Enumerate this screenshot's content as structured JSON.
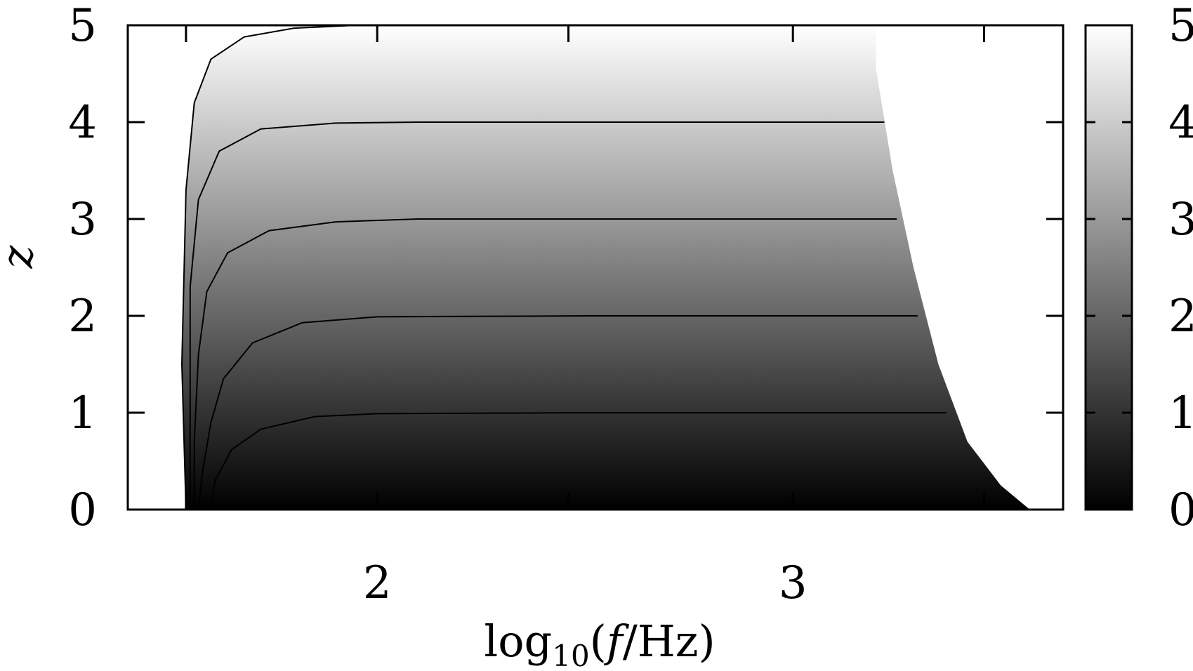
{
  "chart_data": {
    "type": "heatmap",
    "title": "",
    "xlabel_main": "log",
    "xlabel_sub": "10",
    "xlabel_tail_open": "(",
    "xlabel_var": "f",
    "xlabel_unit": "/Hz)",
    "ylabel": "z",
    "xlim": [
      1.4,
      3.65
    ],
    "ylim": [
      0,
      5
    ],
    "x_ticks": [
      {
        "value": 1.54,
        "label": ""
      },
      {
        "value": 2.0,
        "label": "2"
      },
      {
        "value": 2.46,
        "label": ""
      },
      {
        "value": 3.0,
        "label": "3"
      },
      {
        "value": 3.46,
        "label": ""
      }
    ],
    "y_ticks": [
      0,
      1,
      2,
      3,
      4,
      5
    ],
    "y_tick_labels": [
      "0",
      "1",
      "2",
      "3",
      "4",
      "5"
    ],
    "colorbar": {
      "range": [
        0,
        5
      ],
      "colormap": "gray",
      "low_color": "#000000",
      "high_color": "#ffffff",
      "ticks": [
        0,
        1,
        2,
        3,
        4,
        5
      ],
      "tick_labels": [
        "0",
        "1",
        "2",
        "3",
        "4",
        "5"
      ]
    },
    "contours": [
      {
        "level": 0,
        "points": [
          [
            1.4,
            0.0
          ],
          [
            1.54,
            0.0
          ]
        ]
      },
      {
        "level": 1,
        "points": [
          [
            1.6,
            0.0
          ],
          [
            1.61,
            0.3
          ],
          [
            1.65,
            0.62
          ],
          [
            1.72,
            0.83
          ],
          [
            1.85,
            0.96
          ],
          [
            2.0,
            0.99
          ],
          [
            2.5,
            1.0
          ],
          [
            3.37,
            1.0
          ]
        ]
      },
      {
        "level": 2,
        "points": [
          [
            1.57,
            0.0
          ],
          [
            1.58,
            0.4
          ],
          [
            1.6,
            0.9
          ],
          [
            1.63,
            1.35
          ],
          [
            1.7,
            1.72
          ],
          [
            1.82,
            1.93
          ],
          [
            2.0,
            1.99
          ],
          [
            2.5,
            2.0
          ],
          [
            3.3,
            2.0
          ]
        ]
      },
      {
        "level": 3,
        "points": [
          [
            1.56,
            0.0
          ],
          [
            1.56,
            0.7
          ],
          [
            1.57,
            1.6
          ],
          [
            1.59,
            2.25
          ],
          [
            1.64,
            2.65
          ],
          [
            1.74,
            2.88
          ],
          [
            1.9,
            2.97
          ],
          [
            2.1,
            3.0
          ],
          [
            3.25,
            3.0
          ]
        ]
      },
      {
        "level": 4,
        "points": [
          [
            1.55,
            0.0
          ],
          [
            1.55,
            1.0
          ],
          [
            1.55,
            2.3
          ],
          [
            1.57,
            3.2
          ],
          [
            1.62,
            3.7
          ],
          [
            1.72,
            3.93
          ],
          [
            1.9,
            3.99
          ],
          [
            2.1,
            4.0
          ],
          [
            3.22,
            4.0
          ]
        ]
      },
      {
        "level": 5,
        "points": [
          [
            1.54,
            0.0
          ],
          [
            1.53,
            1.5
          ],
          [
            1.54,
            3.3
          ],
          [
            1.56,
            4.2
          ],
          [
            1.6,
            4.65
          ],
          [
            1.68,
            4.88
          ],
          [
            1.8,
            4.97
          ],
          [
            1.95,
            5.0
          ],
          [
            3.2,
            5.0
          ]
        ]
      }
    ],
    "undefined_region": {
      "color": "#ffffff",
      "left_edge": [
        [
          1.4,
          0.0
        ],
        [
          1.54,
          0.0
        ],
        [
          1.53,
          1.5
        ],
        [
          1.54,
          3.3
        ],
        [
          1.56,
          4.2
        ],
        [
          1.6,
          4.65
        ],
        [
          1.68,
          4.88
        ],
        [
          1.8,
          4.97
        ],
        [
          1.95,
          5.0
        ],
        [
          1.4,
          5.0
        ]
      ],
      "right_edge": [
        [
          3.2,
          5.0
        ],
        [
          3.2,
          4.55
        ],
        [
          3.24,
          3.5
        ],
        [
          3.29,
          2.5
        ],
        [
          3.35,
          1.5
        ],
        [
          3.42,
          0.7
        ],
        [
          3.5,
          0.25
        ],
        [
          3.57,
          0.0
        ],
        [
          3.65,
          0.0
        ],
        [
          3.65,
          5.0
        ]
      ]
    }
  }
}
